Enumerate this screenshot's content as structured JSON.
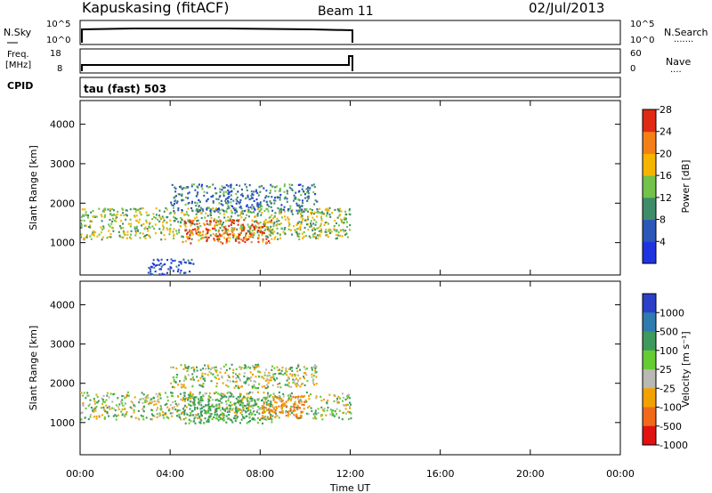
{
  "header": {
    "station": "Kapuskasing (fitACF)",
    "beam": "Beam 11",
    "date": "02/Jul/2013"
  },
  "noise_panel": {
    "left_label": "N.Sky",
    "right_label": "N.Search",
    "left_ticks": [
      "10^5",
      "10^0"
    ],
    "right_ticks": [
      "10^5",
      "10^0"
    ],
    "right_dots": "·······"
  },
  "freq_panel": {
    "left_label_line1": "Freq.",
    "left_label_line2": "[MHz]",
    "right_label": "Nave",
    "left_ticks": [
      "18",
      "8"
    ],
    "right_ticks": [
      "60",
      "0"
    ],
    "right_dots": "····"
  },
  "cpid": {
    "label": "CPID",
    "mode": "tau (fast) 503"
  },
  "chart_data": [
    {
      "type": "heatmap",
      "title": "",
      "xlabel": "Time UT",
      "ylabel": "Slant Range [km]",
      "colorbar_label": "Power [dB]",
      "xlim": [
        "00:00",
        "00:00"
      ],
      "ylim": [
        180,
        4600
      ],
      "x_ticks": [
        "00:00",
        "04:00",
        "08:00",
        "12:00",
        "16:00",
        "20:00",
        "00:00"
      ],
      "y_ticks": [
        1000,
        2000,
        3000,
        4000
      ],
      "colorbar_ticks": [
        4,
        8,
        12,
        16,
        20,
        24,
        28
      ],
      "colorbar_colors": [
        "#1f34e0",
        "#2b58b8",
        "#3f8c6a",
        "#73c24a",
        "#f4b400",
        "#f57f17",
        "#e02a12"
      ],
      "data_end_time_hours": 12.0,
      "echo_regions": [
        {
          "t_start": 0.0,
          "t_end": 12.0,
          "range_min": 1100,
          "range_max": 1900,
          "value_db": 16
        },
        {
          "t_start": 4.5,
          "t_end": 8.5,
          "range_min": 1000,
          "range_max": 1600,
          "value_db": 26
        },
        {
          "t_start": 4.0,
          "t_end": 10.5,
          "range_min": 1800,
          "range_max": 2500,
          "value_db": 10
        },
        {
          "t_start": 3.0,
          "t_end": 5.0,
          "range_min": 200,
          "range_max": 600,
          "value_db": 6
        }
      ]
    },
    {
      "type": "heatmap",
      "title": "",
      "xlabel": "Time UT",
      "ylabel": "Slant Range [km]",
      "colorbar_label": "Velocity [m s⁻¹]",
      "xlim": [
        "00:00",
        "00:00"
      ],
      "ylim": [
        180,
        4600
      ],
      "x_ticks": [
        "00:00",
        "04:00",
        "08:00",
        "12:00",
        "16:00",
        "20:00",
        "00:00"
      ],
      "y_ticks": [
        1000,
        2000,
        3000,
        4000
      ],
      "colorbar_ticks": [
        1000,
        500,
        100,
        25,
        -25,
        -100,
        -500,
        -1000
      ],
      "colorbar_colors": [
        "#2b3fc8",
        "#2e7bb0",
        "#3d9a5c",
        "#66cc33",
        "#b9b9b4",
        "#f2a200",
        "#f06a1a",
        "#e01212"
      ],
      "data_end_time_hours": 12.0,
      "echo_regions": [
        {
          "t_start": 0.0,
          "t_end": 12.0,
          "range_min": 1100,
          "range_max": 1800,
          "value": 0
        },
        {
          "t_start": 4.5,
          "t_end": 8.5,
          "range_min": 1000,
          "range_max": 1700,
          "value": 150
        },
        {
          "t_start": 8.0,
          "t_end": 10.0,
          "range_min": 1100,
          "range_max": 1700,
          "value": -300
        },
        {
          "t_start": 4.0,
          "t_end": 10.5,
          "range_min": 1900,
          "range_max": 2500,
          "value": 0
        }
      ]
    }
  ]
}
